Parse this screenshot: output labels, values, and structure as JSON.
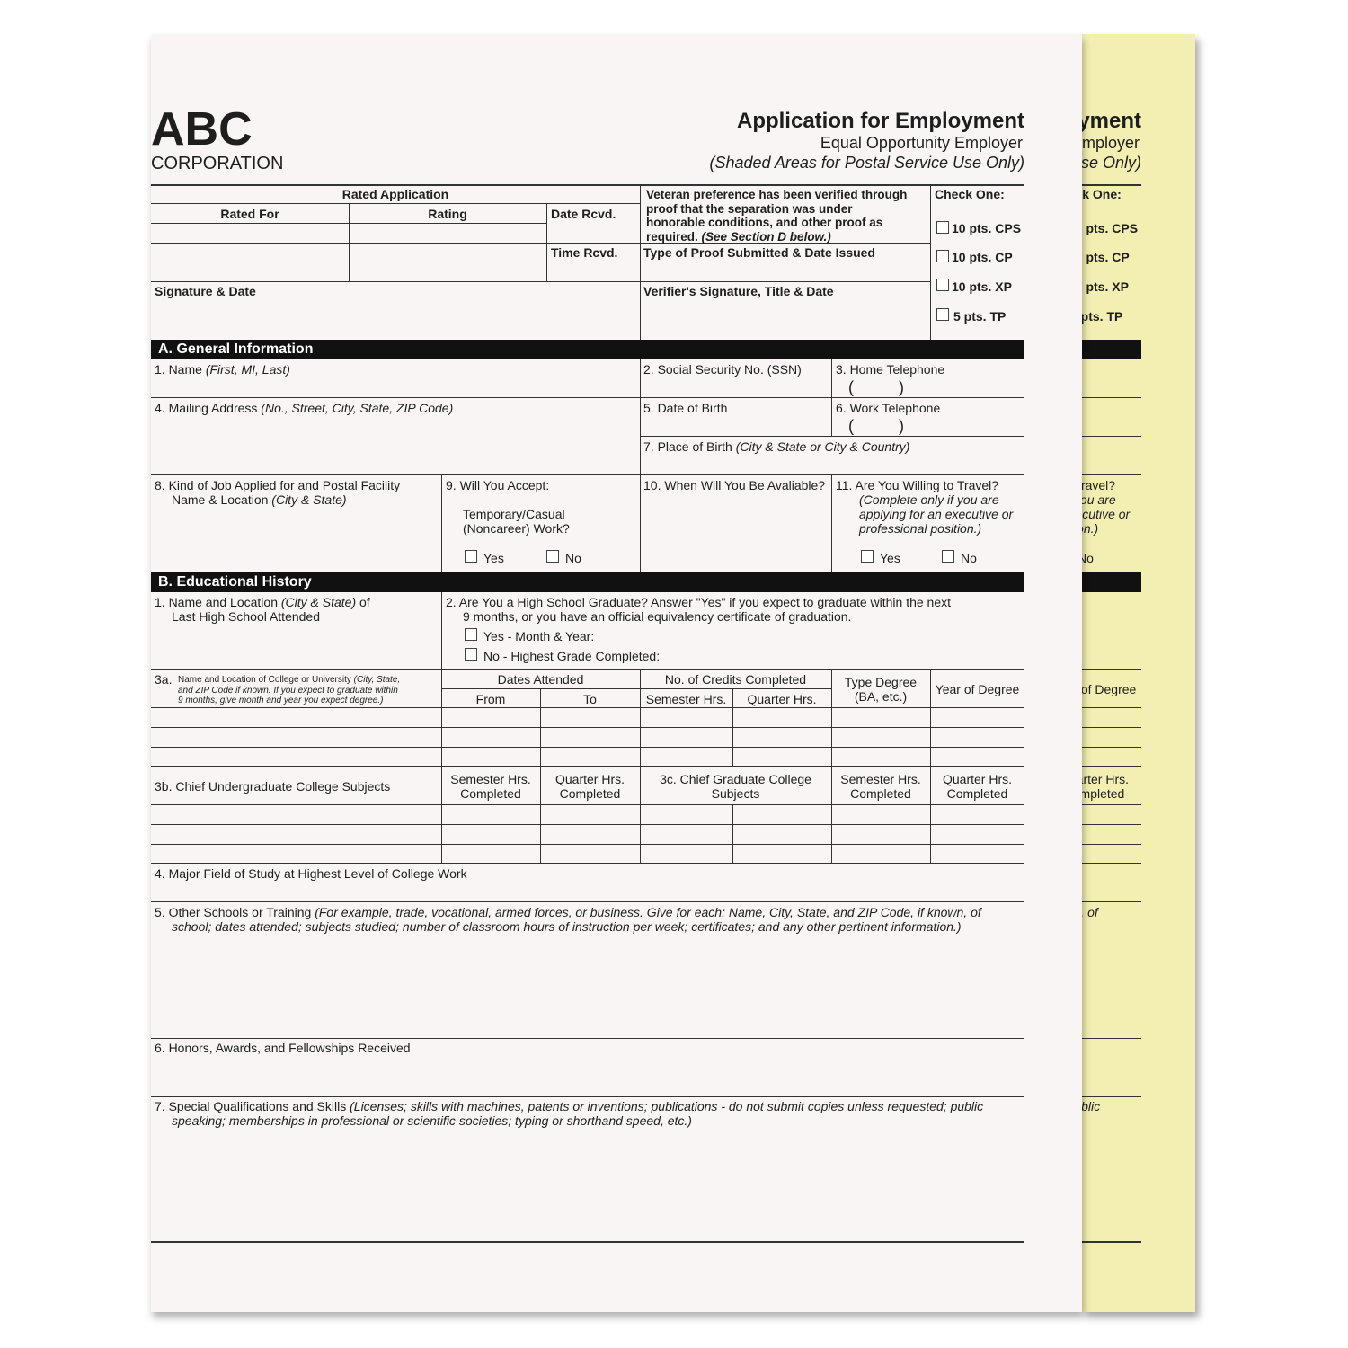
{
  "header": {
    "logo": "ABC",
    "logo_sub": "CORPORATION",
    "title": "Application for Employment",
    "subtitle": "Equal Opportunity Employer",
    "note": "(Shaded Areas for Postal Service Use Only)"
  },
  "postal": {
    "rated_application": "Rated Application",
    "rated_for": "Rated For",
    "rating": "Rating",
    "date_rcvd": "Date Rcvd.",
    "time_rcvd": "Time Rcvd.",
    "signature_date": "Signature & Date",
    "veteran_lines": [
      "Veteran preference has been verified through",
      "proof that the separation was under",
      "honorable conditions, and other proof as",
      "required."
    ],
    "veteran_italic": "(See Section D below.)",
    "proof_type": "Type of Proof Submitted & Date Issued",
    "verifier": "Verifier's Signature, Title & Date",
    "check_one": "Check One:",
    "options": [
      "10 pts. CPS",
      "10 pts. CP",
      "10 pts. XP",
      "5 pts. TP"
    ]
  },
  "section_a": {
    "title": "A.  General Information",
    "name": "1.  Name",
    "name_hint": "(First, MI, Last)",
    "ssn": "2.  Social Security No. (SSN)",
    "home_tel": "3.  Home Telephone",
    "paren": "(          )",
    "address": "4.  Mailing Address",
    "address_hint": "(No., Street, City, State, ZIP Code)",
    "dob": "5.  Date of Birth",
    "work_tel": "6.  Work Telephone",
    "pob": "7.  Place of Birth",
    "pob_hint": "(City & State or City & Country)",
    "job": "8.  Kind of Job Applied for and Postal Facility",
    "job2": "Name & Location",
    "job2_hint": "(City & State)",
    "accept": "9.  Will You Accept:",
    "accept2": "Temporary/Casual",
    "accept3": "(Noncareer) Work?",
    "when": "10.  When Will You Be Avaliable?",
    "travel": "11.  Are You Willing to Travel?",
    "travel_hint": [
      "(Complete only if you are",
      "applying for an executive or",
      "professional position.)"
    ],
    "yes": "Yes",
    "no": "No"
  },
  "section_b": {
    "title": "B.  Educational History",
    "hs": "1.  Name and Location",
    "hs_hint": "(City & State)",
    "hs_of": "of",
    "hs2": "Last High School Attended",
    "grad": "2.  Are You a High School Graduate? Answer \"Yes\" if you expect to graduate within the next",
    "grad2": "9 months, or you have an official equivalency certificate of graduation.",
    "grad_yes": "Yes - Month & Year:",
    "grad_no": "No - Highest Grade Completed:",
    "c3a_num": "3a.",
    "c3a": "Name and Location of College or University",
    "c3a_hint1": "(City, State,",
    "c3a_hint2": "and ZIP Code if known. If you expect to graduate within",
    "c3a_hint3": "9 months, give month and year you expect degree.)",
    "dates_attended": "Dates Attended",
    "from": "From",
    "to": "To",
    "credits": "No. of Credits Completed",
    "semester": "Semester Hrs.",
    "quarter": "Quarter Hrs.",
    "type_degree": "Type Degree",
    "type_degree2": "(BA, etc.)",
    "year_degree": "Year of Degree",
    "c3b": "3b. Chief Undergraduate College Subjects",
    "completed": "Completed",
    "c3c": "3c.  Chief Graduate College",
    "c3c2": "Subjects",
    "major": "4.  Major Field of Study at Highest Level of College Work",
    "other": "5.  Other Schools or Training",
    "other_hint": "(For example, trade, vocational, armed forces, or business. Give for each: Name, City, State, and ZIP Code, if known, of",
    "other_hint2": "school; dates attended; subjects studied; number of classroom hours of instruction per week; certificates; and any other pertinent information.)",
    "honors": "6.  Honors, Awards, and Fellowships Received",
    "special": "7.  Special Qualifications and Skills",
    "special_hint": "(Licenses; skills with machines, patents or inventions; publications - do not submit copies unless requested; public",
    "special_hint2": "speaking; memberships in professional or scientific societies; typing or shorthand speed, etc.)"
  },
  "colors": {
    "paper": "#f8f5f4",
    "carbon_copy": "#f3efb2",
    "section_bar": "#111111"
  }
}
